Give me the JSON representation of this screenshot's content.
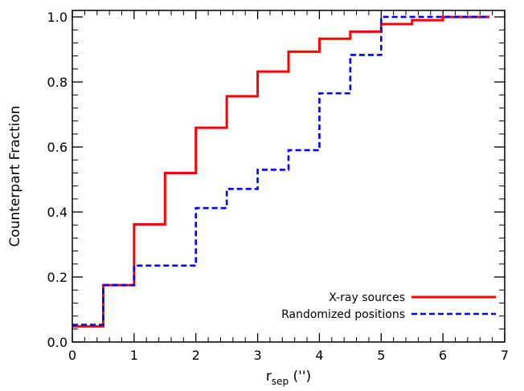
{
  "chart_data": {
    "type": "line",
    "title": "",
    "xlabel": "r",
    "xlabel_subscript": "sep",
    "xlabel_unit": " ('')",
    "ylabel": "Counterpart Fraction",
    "xlim": [
      0,
      7
    ],
    "ylim": [
      0,
      1.02
    ],
    "xticks": [
      0,
      1,
      2,
      3,
      4,
      5,
      6,
      7
    ],
    "yticks": [
      0.0,
      0.2,
      0.4,
      0.6,
      0.8,
      1.0
    ],
    "xtick_labels": [
      "0",
      "1",
      "2",
      "3",
      "4",
      "5",
      "6",
      "7"
    ],
    "ytick_labels": [
      "0.0",
      "0.2",
      "0.4",
      "0.6",
      "0.8",
      "1.0"
    ],
    "grid": false,
    "legend_position": "bottom-right",
    "series": [
      {
        "name": "X-ray sources",
        "color": "#ff0000",
        "style": "solid",
        "step": true,
        "x": [
          0,
          0.5,
          1.0,
          1.5,
          2.0,
          2.5,
          3.0,
          3.5,
          4.0,
          4.5,
          5.0,
          5.5,
          6.0,
          6.5,
          6.75
        ],
        "y": [
          0.048,
          0.175,
          0.362,
          0.52,
          0.659,
          0.756,
          0.832,
          0.893,
          0.933,
          0.955,
          0.978,
          0.99,
          1.0,
          1.0,
          1.0
        ]
      },
      {
        "name": "Randomized positions",
        "color": "#0000ff",
        "style": "dashed",
        "step": true,
        "x": [
          0,
          0.5,
          1.0,
          1.5,
          2.0,
          2.5,
          3.0,
          3.5,
          4.0,
          4.5,
          5.0,
          5.5,
          6.0,
          6.5,
          6.75
        ],
        "y": [
          0.053,
          0.175,
          0.235,
          0.235,
          0.412,
          0.471,
          0.53,
          0.59,
          0.765,
          0.883,
          1.0,
          1.0,
          1.0,
          1.0,
          1.0
        ]
      }
    ]
  }
}
